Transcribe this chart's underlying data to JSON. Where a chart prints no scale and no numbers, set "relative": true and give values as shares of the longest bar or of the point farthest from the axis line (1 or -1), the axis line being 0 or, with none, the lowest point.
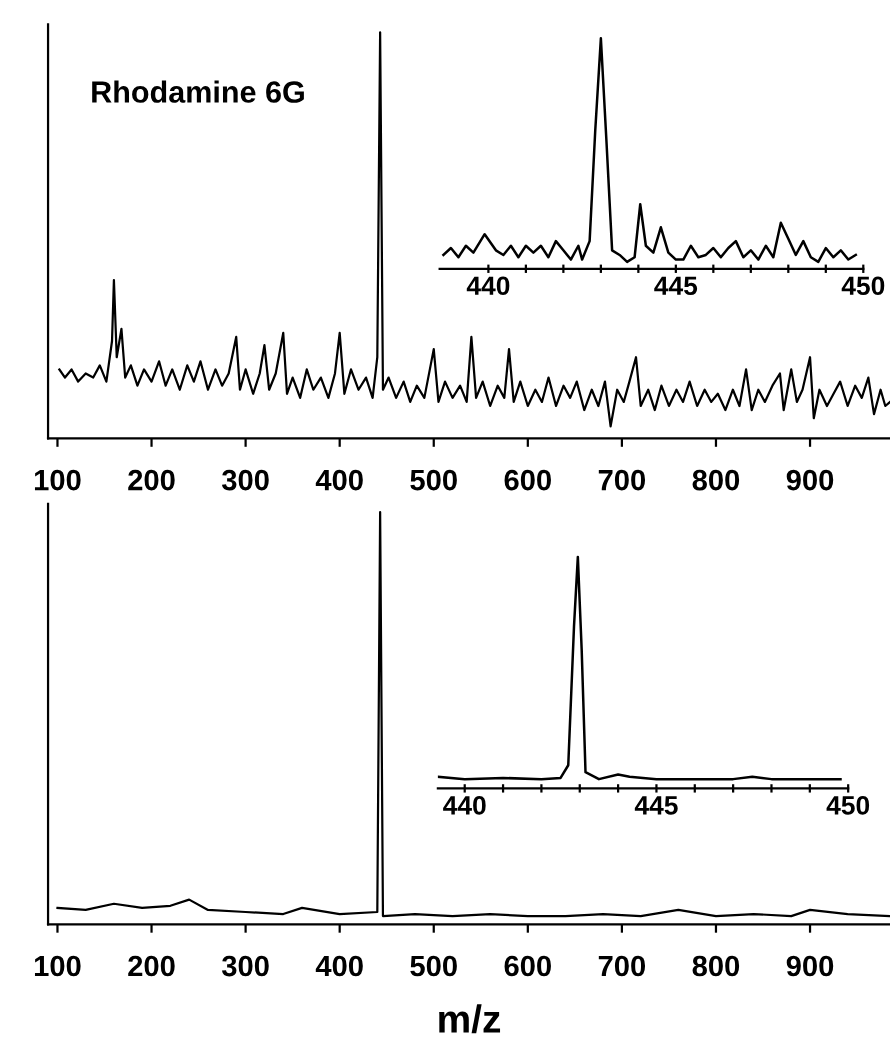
{
  "chart_data": [
    {
      "type": "line",
      "relative": true,
      "tick_labels": "x",
      "xlim": [
        90,
        985
      ],
      "xticks": [
        100,
        200,
        300,
        400,
        500,
        600,
        700,
        800,
        900
      ],
      "annotations": [
        "Rhodamine 6G"
      ],
      "series": [
        {
          "color": "#000000",
          "x": [
            102,
            108,
            115,
            122,
            130,
            138,
            145,
            152,
            158,
            160,
            163,
            168,
            172,
            178,
            185,
            192,
            200,
            208,
            215,
            222,
            230,
            238,
            245,
            252,
            260,
            268,
            275,
            282,
            290,
            294,
            300,
            308,
            315,
            320,
            325,
            332,
            340,
            344,
            350,
            358,
            365,
            372,
            380,
            388,
            395,
            400,
            405,
            412,
            420,
            428,
            435,
            440,
            443,
            446,
            452,
            460,
            468,
            475,
            482,
            490,
            500,
            505,
            512,
            520,
            528,
            535,
            540,
            545,
            552,
            560,
            568,
            575,
            580,
            585,
            592,
            600,
            608,
            615,
            622,
            630,
            638,
            645,
            652,
            660,
            668,
            675,
            682,
            688,
            695,
            702,
            708,
            715,
            720,
            728,
            735,
            742,
            750,
            758,
            765,
            772,
            780,
            788,
            795,
            802,
            810,
            818,
            825,
            832,
            838,
            845,
            852,
            860,
            868,
            872,
            880,
            886,
            892,
            900,
            904,
            910,
            918,
            925,
            932,
            940,
            948,
            955,
            962,
            968,
            975,
            980,
            985
          ],
          "values": [
            0.17,
            0.15,
            0.17,
            0.14,
            0.16,
            0.15,
            0.18,
            0.14,
            0.24,
            0.39,
            0.2,
            0.27,
            0.15,
            0.18,
            0.13,
            0.17,
            0.14,
            0.19,
            0.13,
            0.17,
            0.12,
            0.18,
            0.14,
            0.19,
            0.12,
            0.17,
            0.13,
            0.16,
            0.25,
            0.12,
            0.17,
            0.11,
            0.16,
            0.23,
            0.12,
            0.16,
            0.26,
            0.11,
            0.15,
            0.1,
            0.17,
            0.12,
            0.15,
            0.1,
            0.16,
            0.26,
            0.11,
            0.17,
            0.12,
            0.15,
            0.1,
            0.2,
            1.0,
            0.12,
            0.15,
            0.1,
            0.14,
            0.09,
            0.13,
            0.1,
            0.22,
            0.09,
            0.14,
            0.1,
            0.13,
            0.09,
            0.25,
            0.1,
            0.14,
            0.08,
            0.13,
            0.1,
            0.22,
            0.09,
            0.14,
            0.08,
            0.12,
            0.09,
            0.15,
            0.08,
            0.13,
            0.1,
            0.14,
            0.07,
            0.12,
            0.08,
            0.14,
            0.03,
            0.12,
            0.09,
            0.14,
            0.2,
            0.08,
            0.12,
            0.07,
            0.13,
            0.08,
            0.12,
            0.09,
            0.14,
            0.08,
            0.12,
            0.09,
            0.11,
            0.07,
            0.12,
            0.08,
            0.17,
            0.07,
            0.12,
            0.09,
            0.13,
            0.16,
            0.07,
            0.17,
            0.09,
            0.12,
            0.2,
            0.05,
            0.12,
            0.08,
            0.11,
            0.14,
            0.08,
            0.13,
            0.1,
            0.15,
            0.06,
            0.12,
            0.08,
            0.09
          ]
        }
      ]
    },
    {
      "type": "line",
      "relative": true,
      "tick_labels": "x",
      "xlim": [
        438.7,
        450
      ],
      "xticks": [
        440,
        {
          "value": 441,
          "label": null
        },
        {
          "value": 442,
          "label": null
        },
        {
          "value": 443,
          "label": null
        },
        {
          "value": 444,
          "label": null
        },
        445,
        {
          "value": 446,
          "label": null
        },
        {
          "value": 447,
          "label": null
        },
        {
          "value": 448,
          "label": null
        },
        {
          "value": 449,
          "label": null
        },
        450
      ],
      "series": [
        {
          "color": "#000000",
          "x": [
            438.8,
            439.0,
            439.2,
            439.4,
            439.6,
            439.9,
            440.2,
            440.4,
            440.6,
            440.8,
            441.0,
            441.2,
            441.4,
            441.6,
            441.8,
            442.0,
            442.2,
            442.4,
            442.5,
            442.7,
            442.85,
            443.0,
            443.15,
            443.3,
            443.5,
            443.7,
            443.9,
            444.05,
            444.2,
            444.4,
            444.6,
            444.8,
            445.0,
            445.2,
            445.4,
            445.6,
            445.8,
            446.0,
            446.2,
            446.4,
            446.6,
            446.8,
            447.0,
            447.2,
            447.4,
            447.6,
            447.8,
            448.0,
            448.2,
            448.4,
            448.6,
            448.8,
            449.0,
            449.2,
            449.4,
            449.6,
            449.8
          ],
          "values": [
            0.06,
            0.09,
            0.05,
            0.1,
            0.07,
            0.15,
            0.08,
            0.06,
            0.1,
            0.05,
            0.1,
            0.07,
            0.1,
            0.05,
            0.12,
            0.08,
            0.04,
            0.1,
            0.04,
            0.12,
            0.6,
            1.0,
            0.55,
            0.08,
            0.06,
            0.03,
            0.05,
            0.28,
            0.1,
            0.07,
            0.18,
            0.07,
            0.04,
            0.04,
            0.1,
            0.05,
            0.06,
            0.09,
            0.05,
            0.09,
            0.12,
            0.05,
            0.08,
            0.04,
            0.1,
            0.05,
            0.2,
            0.13,
            0.06,
            0.12,
            0.05,
            0.03,
            0.09,
            0.05,
            0.08,
            0.04,
            0.06
          ]
        }
      ]
    },
    {
      "type": "line",
      "relative": true,
      "tick_labels": "x",
      "xlim": [
        90,
        985
      ],
      "xticks": [
        100,
        200,
        300,
        400,
        500,
        600,
        700,
        800,
        900
      ],
      "xlabel": "m/z",
      "series": [
        {
          "color": "#000000",
          "x": [
            100,
            130,
            160,
            190,
            220,
            240,
            260,
            300,
            340,
            360,
            400,
            440,
            443,
            446,
            480,
            520,
            560,
            600,
            640,
            680,
            720,
            760,
            800,
            840,
            880,
            900,
            940,
            985
          ],
          "values": [
            0.04,
            0.035,
            0.05,
            0.04,
            0.045,
            0.06,
            0.035,
            0.03,
            0.025,
            0.04,
            0.025,
            0.03,
            1.0,
            0.02,
            0.025,
            0.02,
            0.025,
            0.02,
            0.02,
            0.025,
            0.02,
            0.035,
            0.02,
            0.025,
            0.02,
            0.035,
            0.025,
            0.02
          ]
        }
      ]
    },
    {
      "type": "line",
      "relative": true,
      "tick_labels": "x",
      "xlim": [
        439.3,
        450
      ],
      "xticks": [
        440,
        {
          "value": 441,
          "label": null
        },
        {
          "value": 442,
          "label": null
        },
        {
          "value": 443,
          "label": null
        },
        {
          "value": 444,
          "label": null
        },
        445,
        {
          "value": 446,
          "label": null
        },
        {
          "value": 447,
          "label": null
        },
        {
          "value": 448,
          "label": null
        },
        {
          "value": 449,
          "label": null
        },
        450
      ],
      "series": [
        {
          "color": "#000000",
          "x": [
            439.3,
            440,
            441,
            442,
            442.5,
            442.7,
            442.85,
            442.95,
            443.05,
            443.15,
            443.5,
            444,
            444.3,
            445,
            446,
            447,
            447.5,
            448,
            449,
            449.8
          ],
          "values": [
            0.05,
            0.04,
            0.045,
            0.04,
            0.045,
            0.1,
            0.7,
            1.0,
            0.6,
            0.07,
            0.04,
            0.06,
            0.05,
            0.04,
            0.04,
            0.04,
            0.05,
            0.04,
            0.04,
            0.04
          ]
        }
      ]
    }
  ]
}
